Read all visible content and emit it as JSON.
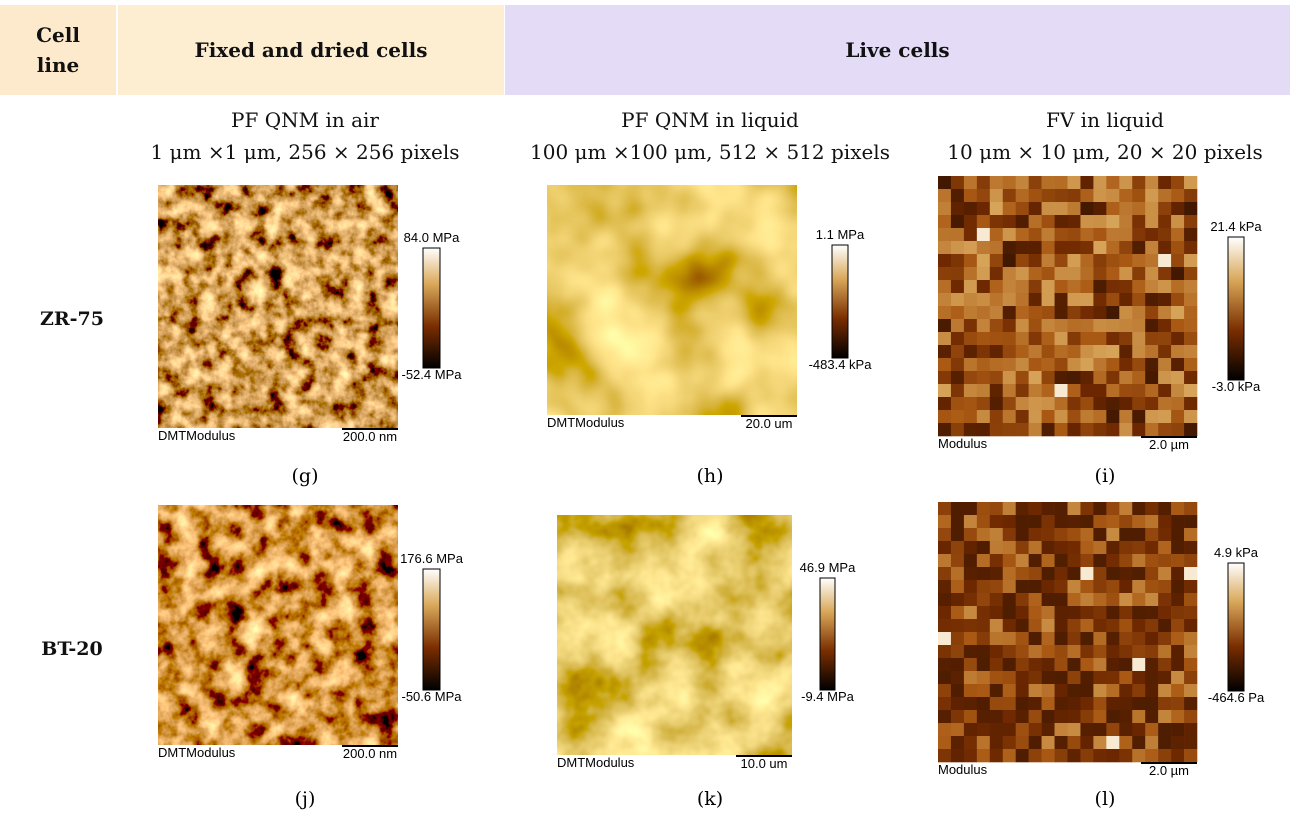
{
  "header": {
    "cell_line": "Cell line",
    "fixed": "Fixed and dried cells",
    "live": "Live cells"
  },
  "columns": [
    {
      "method": "PF QNM in air",
      "scan": "1 μm ×1 μm, 256 × 256 pixels"
    },
    {
      "method": "PF QNM in liquid",
      "scan": "100 μm ×100 μm, 512 × 512 pixels"
    },
    {
      "method": "FV in liquid",
      "scan": "10 μm × 10 μm, 20 × 20 pixels"
    }
  ],
  "rows": [
    {
      "cell_line": "ZR-75",
      "panels": [
        {
          "max": "84.0 MPa",
          "min": "-52.4 MPa",
          "channel": "DMTModulus",
          "scale": "200.0 nm",
          "label": "(g)"
        },
        {
          "max": "1.1 MPa",
          "min": "-483.4 kPa",
          "channel": "DMTModulus",
          "scale": "20.0 um",
          "label": "(h)"
        },
        {
          "max": "21.4 kPa",
          "min": "-3.0 kPa",
          "channel": "Modulus",
          "scale": "2.0 µm",
          "label": "(i)"
        }
      ]
    },
    {
      "cell_line": "BT-20",
      "panels": [
        {
          "max": "176.6 MPa",
          "min": "-50.6 MPa",
          "channel": "DMTModulus",
          "scale": "200.0 nm",
          "label": "(j)"
        },
        {
          "max": "46.9 MPa",
          "min": "-9.4 MPa",
          "channel": "DMTModulus",
          "scale": "10.0 um",
          "label": "(k)"
        },
        {
          "max": "4.9 kPa",
          "min": "-464.6 Pa",
          "channel": "Modulus",
          "scale": "2.0 µm",
          "label": "(l)"
        }
      ]
    }
  ]
}
